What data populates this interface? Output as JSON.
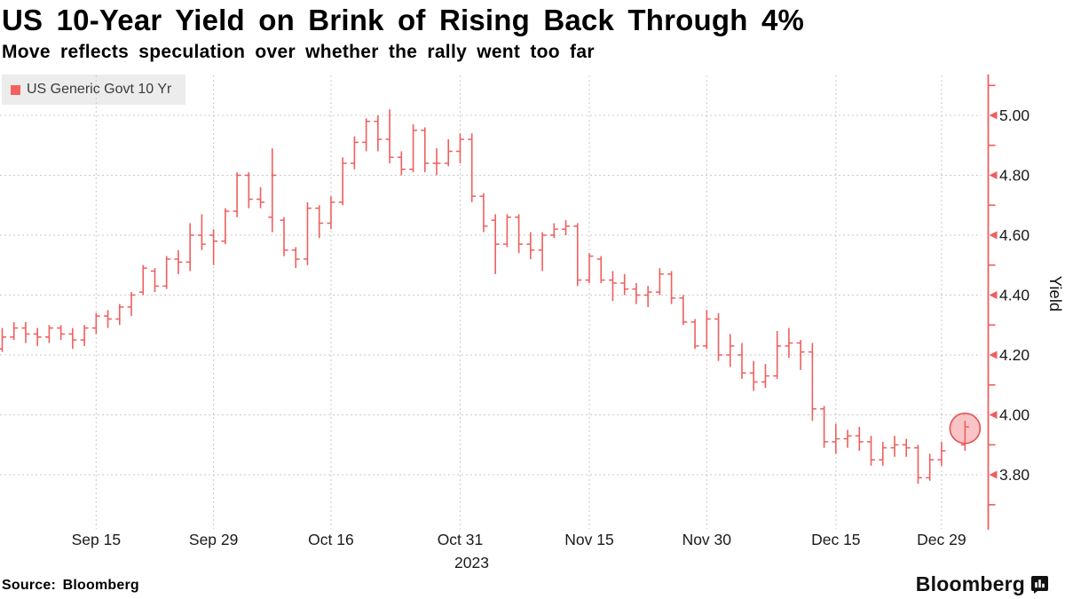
{
  "header": {
    "title": "US 10-Year Yield on Brink of Rising Back Through 4%",
    "subtitle": "Move reflects speculation over whether the rally went too far"
  },
  "legend": {
    "label": "US Generic Govt 10 Yr",
    "swatch_color": "#f4605f"
  },
  "footer": {
    "source": "Source: Bloomberg",
    "brand": "Bloomberg"
  },
  "colors": {
    "series_red": "#ee5f5e",
    "axis_red": "#ee5f5e",
    "gridline_gray": "#c9c9c9",
    "legend_bg": "#ececec",
    "tick_label": "#1a1a1a",
    "highlight_fill": "rgba(240,100,105,0.38)",
    "highlight_stroke": "#e25257"
  },
  "chart_data": {
    "type": "ohlc",
    "title": "US 10-Year Yield on Brink of Rising Back Through 4%",
    "subtitle": "Move reflects speculation over whether the rally went too far",
    "legend_entries": [
      "US Generic Govt 10 Yr"
    ],
    "legend_position": "top-left",
    "grid": true,
    "unit": "percent",
    "ylabel": "Yield",
    "ylim": [
      3.62,
      5.13
    ],
    "yticks_major": [
      3.8,
      4.0,
      4.2,
      4.4,
      4.6,
      4.8,
      5.0
    ],
    "yticks_minor": [
      3.7,
      3.9,
      4.1,
      4.3,
      4.5,
      4.7,
      4.9,
      5.1
    ],
    "ytick_format": "2dp",
    "x_ticks": [
      {
        "label": "Sep 15",
        "slot": 8
      },
      {
        "label": "Sep 29",
        "slot": 18
      },
      {
        "label": "Oct 16",
        "slot": 28
      },
      {
        "label": "Oct 31",
        "slot": 39
      },
      {
        "label": "Nov 15",
        "slot": 50
      },
      {
        "label": "Nov 30",
        "slot": 60
      },
      {
        "label": "Dec 15",
        "slot": 71
      },
      {
        "label": "Dec 29",
        "slot": 80
      }
    ],
    "year_label": {
      "label": "2023",
      "slot": 39,
      "dx": 13
    },
    "highlight": {
      "slot": 82,
      "value": 3.955,
      "radius": 17
    },
    "series": [
      {
        "name": "US Generic Govt 10 Yr",
        "bars": [
          {
            "d": "Sep 5",
            "o": 4.22,
            "h": 4.29,
            "l": 4.21,
            "c": 4.26
          },
          {
            "d": "Sep 6",
            "o": 4.26,
            "h": 4.31,
            "l": 4.25,
            "c": 4.29
          },
          {
            "d": "Sep 7",
            "o": 4.29,
            "h": 4.31,
            "l": 4.24,
            "c": 4.27
          },
          {
            "d": "Sep 8",
            "o": 4.27,
            "h": 4.29,
            "l": 4.23,
            "c": 4.26
          },
          {
            "d": "Sep 11",
            "o": 4.26,
            "h": 4.3,
            "l": 4.24,
            "c": 4.29
          },
          {
            "d": "Sep 12",
            "o": 4.29,
            "h": 4.3,
            "l": 4.25,
            "c": 4.27
          },
          {
            "d": "Sep 13",
            "o": 4.27,
            "h": 4.29,
            "l": 4.22,
            "c": 4.25
          },
          {
            "d": "Sep 14",
            "o": 4.25,
            "h": 4.3,
            "l": 4.23,
            "c": 4.29
          },
          {
            "d": "Sep 15",
            "o": 4.29,
            "h": 4.34,
            "l": 4.27,
            "c": 4.33
          },
          {
            "d": "Sep 18",
            "o": 4.33,
            "h": 4.35,
            "l": 4.29,
            "c": 4.32
          },
          {
            "d": "Sep 19",
            "o": 4.32,
            "h": 4.37,
            "l": 4.3,
            "c": 4.36
          },
          {
            "d": "Sep 20",
            "o": 4.36,
            "h": 4.41,
            "l": 4.33,
            "c": 4.4
          },
          {
            "d": "Sep 21",
            "o": 4.41,
            "h": 4.5,
            "l": 4.4,
            "c": 4.49
          },
          {
            "d": "Sep 22",
            "o": 4.48,
            "h": 4.49,
            "l": 4.41,
            "c": 4.43
          },
          {
            "d": "Sep 25",
            "o": 4.43,
            "h": 4.53,
            "l": 4.42,
            "c": 4.52
          },
          {
            "d": "Sep 26",
            "o": 4.52,
            "h": 4.55,
            "l": 4.47,
            "c": 4.51
          },
          {
            "d": "Sep 27",
            "o": 4.51,
            "h": 4.64,
            "l": 4.48,
            "c": 4.6
          },
          {
            "d": "Sep 28",
            "o": 4.6,
            "h": 4.67,
            "l": 4.55,
            "c": 4.57
          },
          {
            "d": "Sep 29",
            "o": 4.6,
            "h": 4.62,
            "l": 4.5,
            "c": 4.58
          },
          {
            "d": "Oct 2",
            "o": 4.58,
            "h": 4.69,
            "l": 4.57,
            "c": 4.68
          },
          {
            "d": "Oct 3",
            "o": 4.68,
            "h": 4.81,
            "l": 4.66,
            "c": 4.8
          },
          {
            "d": "Oct 4",
            "o": 4.8,
            "h": 4.81,
            "l": 4.69,
            "c": 4.72
          },
          {
            "d": "Oct 5",
            "o": 4.72,
            "h": 4.76,
            "l": 4.69,
            "c": 4.71
          },
          {
            "d": "Oct 6",
            "o": 4.66,
            "h": 4.89,
            "l": 4.61,
            "c": 4.8
          },
          {
            "d": "Oct 10",
            "o": 4.65,
            "h": 4.66,
            "l": 4.53,
            "c": 4.55
          },
          {
            "d": "Oct 11",
            "o": 4.55,
            "h": 4.56,
            "l": 4.49,
            "c": 4.52
          },
          {
            "d": "Oct 12",
            "o": 4.52,
            "h": 4.71,
            "l": 4.5,
            "c": 4.69
          },
          {
            "d": "Oct 13",
            "o": 4.69,
            "h": 4.7,
            "l": 4.59,
            "c": 4.64
          },
          {
            "d": "Oct 16",
            "o": 4.64,
            "h": 4.73,
            "l": 4.62,
            "c": 4.71
          },
          {
            "d": "Oct 17",
            "o": 4.71,
            "h": 4.86,
            "l": 4.7,
            "c": 4.84
          },
          {
            "d": "Oct 18",
            "o": 4.84,
            "h": 4.93,
            "l": 4.82,
            "c": 4.91
          },
          {
            "d": "Oct 19",
            "o": 4.91,
            "h": 4.99,
            "l": 4.88,
            "c": 4.98
          },
          {
            "d": "Oct 20",
            "o": 4.98,
            "h": 5.0,
            "l": 4.88,
            "c": 4.92
          },
          {
            "d": "Oct 23",
            "o": 4.92,
            "h": 5.02,
            "l": 4.84,
            "c": 4.86
          },
          {
            "d": "Oct 24",
            "o": 4.86,
            "h": 4.88,
            "l": 4.8,
            "c": 4.82
          },
          {
            "d": "Oct 25",
            "o": 4.82,
            "h": 4.97,
            "l": 4.81,
            "c": 4.95
          },
          {
            "d": "Oct 26",
            "o": 4.95,
            "h": 4.96,
            "l": 4.81,
            "c": 4.84
          },
          {
            "d": "Oct 27",
            "o": 4.84,
            "h": 4.89,
            "l": 4.8,
            "c": 4.84
          },
          {
            "d": "Oct 30",
            "o": 4.84,
            "h": 4.92,
            "l": 4.83,
            "c": 4.88
          },
          {
            "d": "Oct 31",
            "o": 4.88,
            "h": 4.94,
            "l": 4.84,
            "c": 4.92
          },
          {
            "d": "Nov 1",
            "o": 4.92,
            "h": 4.94,
            "l": 4.71,
            "c": 4.73
          },
          {
            "d": "Nov 2",
            "o": 4.73,
            "h": 4.74,
            "l": 4.61,
            "c": 4.63
          },
          {
            "d": "Nov 3",
            "o": 4.65,
            "h": 4.67,
            "l": 4.47,
            "c": 4.57
          },
          {
            "d": "Nov 6",
            "o": 4.57,
            "h": 4.67,
            "l": 4.56,
            "c": 4.66
          },
          {
            "d": "Nov 7",
            "o": 4.66,
            "h": 4.67,
            "l": 4.54,
            "c": 4.57
          },
          {
            "d": "Nov 8",
            "o": 4.57,
            "h": 4.61,
            "l": 4.52,
            "c": 4.55
          },
          {
            "d": "Nov 9",
            "o": 4.55,
            "h": 4.61,
            "l": 4.48,
            "c": 4.6
          },
          {
            "d": "Nov 10",
            "o": 4.6,
            "h": 4.64,
            "l": 4.59,
            "c": 4.62
          },
          {
            "d": "Nov 13",
            "o": 4.62,
            "h": 4.65,
            "l": 4.6,
            "c": 4.63
          },
          {
            "d": "Nov 14",
            "o": 4.63,
            "h": 4.64,
            "l": 4.43,
            "c": 4.45
          },
          {
            "d": "Nov 15",
            "o": 4.45,
            "h": 4.54,
            "l": 4.44,
            "c": 4.53
          },
          {
            "d": "Nov 16",
            "o": 4.52,
            "h": 4.53,
            "l": 4.44,
            "c": 4.45
          },
          {
            "d": "Nov 17",
            "o": 4.45,
            "h": 4.48,
            "l": 4.38,
            "c": 4.44
          },
          {
            "d": "Nov 20",
            "o": 4.44,
            "h": 4.47,
            "l": 4.4,
            "c": 4.42
          },
          {
            "d": "Nov 21",
            "o": 4.42,
            "h": 4.44,
            "l": 4.37,
            "c": 4.4
          },
          {
            "d": "Nov 22",
            "o": 4.4,
            "h": 4.43,
            "l": 4.36,
            "c": 4.41
          },
          {
            "d": "Nov 24",
            "o": 4.41,
            "h": 4.49,
            "l": 4.4,
            "c": 4.47
          },
          {
            "d": "Nov 27",
            "o": 4.47,
            "h": 4.48,
            "l": 4.37,
            "c": 4.39
          },
          {
            "d": "Nov 28",
            "o": 4.39,
            "h": 4.4,
            "l": 4.3,
            "c": 4.31
          },
          {
            "d": "Nov 29",
            "o": 4.31,
            "h": 4.32,
            "l": 4.22,
            "c": 4.23
          },
          {
            "d": "Nov 30",
            "o": 4.23,
            "h": 4.35,
            "l": 4.22,
            "c": 4.32
          },
          {
            "d": "Dec 1",
            "o": 4.32,
            "h": 4.34,
            "l": 4.18,
            "c": 4.2
          },
          {
            "d": "Dec 4",
            "o": 4.2,
            "h": 4.27,
            "l": 4.16,
            "c": 4.23
          },
          {
            "d": "Dec 5",
            "o": 4.2,
            "h": 4.24,
            "l": 4.12,
            "c": 4.14
          },
          {
            "d": "Dec 6",
            "o": 4.14,
            "h": 4.18,
            "l": 4.08,
            "c": 4.11
          },
          {
            "d": "Dec 7",
            "o": 4.11,
            "h": 4.17,
            "l": 4.09,
            "c": 4.13
          },
          {
            "d": "Dec 8",
            "o": 4.13,
            "h": 4.28,
            "l": 4.12,
            "c": 4.23
          },
          {
            "d": "Dec 11",
            "o": 4.23,
            "h": 4.29,
            "l": 4.19,
            "c": 4.24
          },
          {
            "d": "Dec 12",
            "o": 4.24,
            "h": 4.25,
            "l": 4.15,
            "c": 4.21
          },
          {
            "d": "Dec 13",
            "o": 4.21,
            "h": 4.24,
            "l": 3.98,
            "c": 4.02
          },
          {
            "d": "Dec 14",
            "o": 4.02,
            "h": 4.03,
            "l": 3.89,
            "c": 3.91
          },
          {
            "d": "Dec 15",
            "o": 3.91,
            "h": 3.97,
            "l": 3.87,
            "c": 3.92
          },
          {
            "d": "Dec 18",
            "o": 3.92,
            "h": 3.95,
            "l": 3.89,
            "c": 3.93
          },
          {
            "d": "Dec 19",
            "o": 3.93,
            "h": 3.96,
            "l": 3.88,
            "c": 3.91
          },
          {
            "d": "Dec 20",
            "o": 3.91,
            "h": 3.93,
            "l": 3.83,
            "c": 3.85
          },
          {
            "d": "Dec 21",
            "o": 3.85,
            "h": 3.91,
            "l": 3.83,
            "c": 3.89
          },
          {
            "d": "Dec 22",
            "o": 3.89,
            "h": 3.93,
            "l": 3.86,
            "c": 3.9
          },
          {
            "d": "Dec 26",
            "o": 3.9,
            "h": 3.92,
            "l": 3.86,
            "c": 3.89
          },
          {
            "d": "Dec 27",
            "o": 3.89,
            "h": 3.9,
            "l": 3.77,
            "c": 3.79
          },
          {
            "d": "Dec 28",
            "o": 3.79,
            "h": 3.87,
            "l": 3.78,
            "c": 3.85
          },
          {
            "d": "Dec 29",
            "o": 3.85,
            "h": 3.91,
            "l": 3.83,
            "c": 3.88
          },
          {
            "d": "Jan 1"
          },
          {
            "d": "Jan 2",
            "o": 3.9,
            "h": 3.98,
            "l": 3.88,
            "c": 3.96
          }
        ]
      }
    ]
  }
}
